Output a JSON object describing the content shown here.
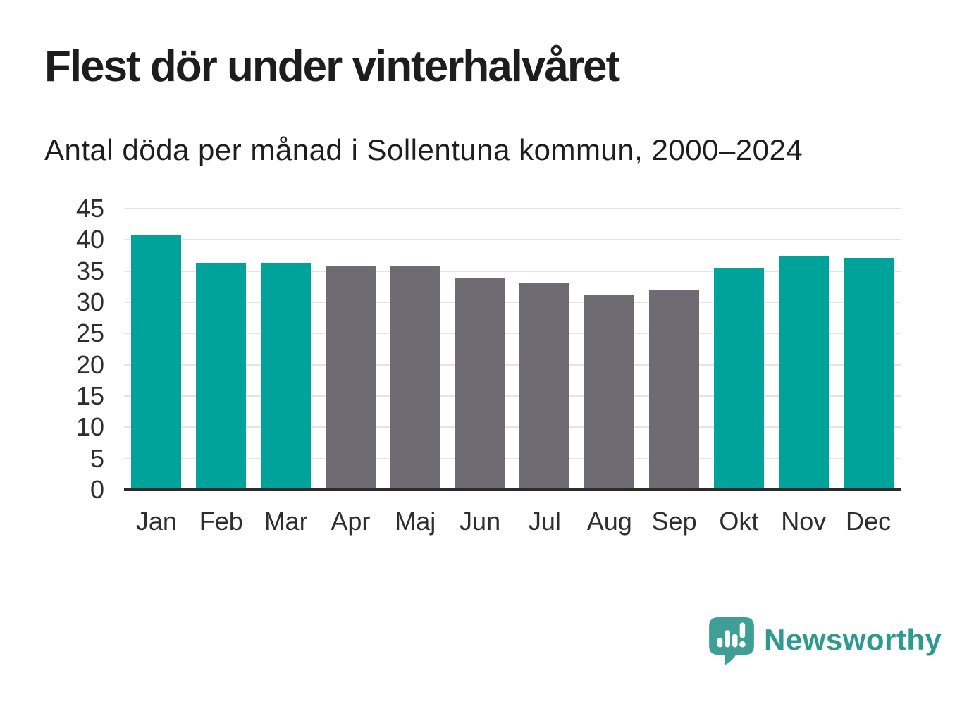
{
  "title": "Flest dör under vinterhalvåret",
  "subtitle": "Antal döda per månad i Sollentuna kommun, 2000–2024",
  "chart_data": {
    "type": "bar",
    "categories": [
      "Jan",
      "Feb",
      "Mar",
      "Apr",
      "Maj",
      "Jun",
      "Jul",
      "Aug",
      "Sep",
      "Okt",
      "Nov",
      "Dec"
    ],
    "values": [
      40.7,
      36.3,
      36.3,
      35.8,
      35.8,
      34.0,
      33.0,
      31.2,
      32.0,
      35.5,
      37.4,
      37.1
    ],
    "groups": [
      "winter",
      "winter",
      "winter",
      "summer",
      "summer",
      "summer",
      "summer",
      "summer",
      "summer",
      "winter",
      "winter",
      "winter"
    ],
    "group_colors": {
      "winter": "#00a39a",
      "summer": "#6f6b74"
    },
    "title": "Flest dör under vinterhalvåret",
    "subtitle": "Antal döda per månad i Sollentuna kommun, 2000–2024",
    "xlabel": "",
    "ylabel": "",
    "ylim": [
      0,
      45
    ],
    "yticks": [
      0,
      5,
      10,
      15,
      20,
      25,
      30,
      35,
      40,
      45
    ],
    "grid": true,
    "legend": "none"
  },
  "colors": {
    "background": "#ffffff",
    "title_text": "#1d1d1d",
    "tick_text": "#2e2e2e",
    "gridline": "#e4e4e4",
    "axis_line": "#2b2b2b"
  },
  "branding": {
    "logo_text": "Newsworthy",
    "logo_text_color": "#2d9a90",
    "logo_mark": "speech-bubble-bar-chart-icon",
    "logo_mark_color": "#3f9e96"
  }
}
